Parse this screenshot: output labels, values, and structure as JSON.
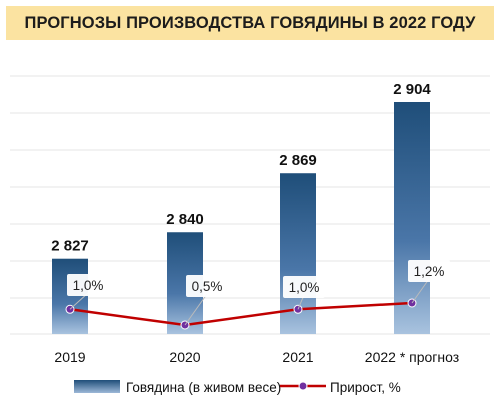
{
  "chart_data": {
    "type": "bar",
    "title": "ПРОГНОЗЫ ПРОИЗВОДСТВА ГОВЯДИНЫ В 2022 ГОДУ",
    "categories": [
      "2019",
      "2020",
      "2021",
      "2022 * прогноз"
    ],
    "series": [
      {
        "name": "Говядина (в живом весе)",
        "type": "bar",
        "values": [
          2827,
          2840,
          2869,
          2904
        ],
        "labels": [
          "2 827",
          "2 840",
          "2 869",
          "2 904"
        ],
        "color": "#1f4e79"
      },
      {
        "name": "Прирост, %",
        "type": "line",
        "values": [
          1.0,
          0.5,
          1.0,
          1.2
        ],
        "labels": [
          "1,0%",
          "0,5%",
          "1,0%",
          "1,2%"
        ],
        "color": "#c00000",
        "marker_color": "#7030a0"
      }
    ],
    "grid": true,
    "legend_position": "bottom",
    "colors": {
      "title_bg": "#fbe3a1",
      "grid": "#e6e6e6"
    }
  }
}
